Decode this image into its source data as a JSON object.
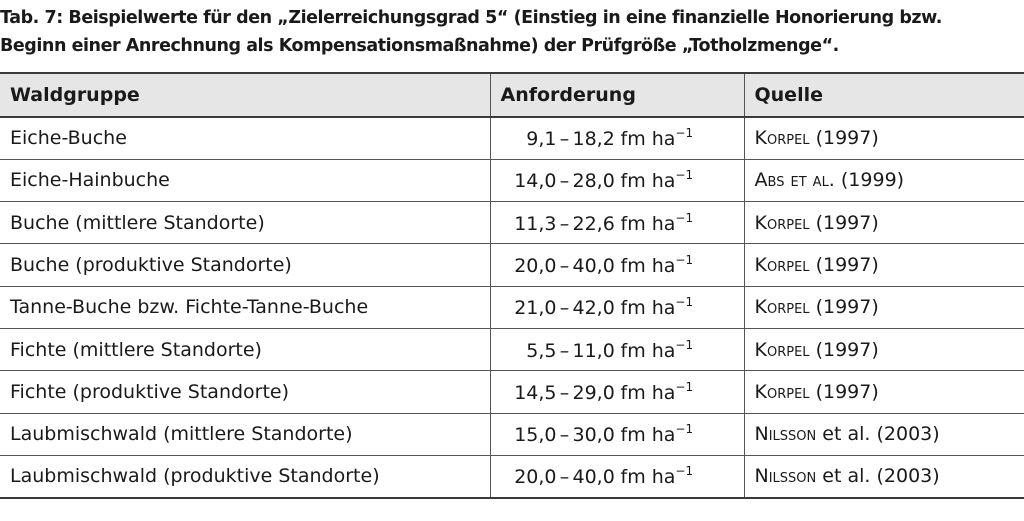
{
  "caption": {
    "line1": "Tab. 7: Beispielwerte für den „Zielerreichungsgrad 5“ (Einstieg in eine finanzielle Honorierung bzw.",
    "line2": "Beginn einer Anrechnung als Kompensationsmaßnahme) der Prüfgröße „Totholzmenge“."
  },
  "table": {
    "headers": [
      "Waldgruppe",
      "Anforderung",
      "Quelle"
    ],
    "unit_base": "fm ha",
    "unit_exp": "−1",
    "rows": [
      {
        "waldgruppe": "Eiche-Buche",
        "from": "9,1",
        "dash": "–",
        "to": "18,2",
        "author": "Korpel",
        "rest": " (1997)"
      },
      {
        "waldgruppe": "Eiche-Hainbuche",
        "from": "14,0",
        "dash": "–",
        "to": "28,0",
        "author": "Abs et al.",
        "rest": " (1999)"
      },
      {
        "waldgruppe": "Buche (mittlere Standorte)",
        "from": "11,3",
        "dash": "–",
        "to": "22,6",
        "author": "Korpel",
        "rest": " (1997)"
      },
      {
        "waldgruppe": "Buche (produktive Standorte)",
        "from": "20,0",
        "dash": "–",
        "to": "40,0",
        "author": "Korpel",
        "rest": " (1997)"
      },
      {
        "waldgruppe": "Tanne-Buche bzw. Fichte-Tanne-Buche",
        "from": "21,0",
        "dash": "–",
        "to": "42,0",
        "author": "Korpel",
        "rest": " (1997)"
      },
      {
        "waldgruppe": "Fichte (mittlere Standorte)",
        "from": "5,5",
        "dash": "–",
        "to": "11,0",
        "author": "Korpel",
        "rest": " (1997)"
      },
      {
        "waldgruppe": "Fichte (produktive Standorte)",
        "from": "14,5",
        "dash": "–",
        "to": "29,0",
        "author": "Korpel",
        "rest": " (1997)"
      },
      {
        "waldgruppe": "Laubmischwald (mittlere Standorte)",
        "from": "15,0",
        "dash": "–",
        "to": "30,0",
        "author": "Nilsson",
        "rest": " et al. (2003)"
      },
      {
        "waldgruppe": "Laubmischwald (produktive Standorte)",
        "from": "20,0",
        "dash": "–",
        "to": "40,0",
        "author": "Nilsson",
        "rest": " et al. (2003)"
      }
    ]
  }
}
